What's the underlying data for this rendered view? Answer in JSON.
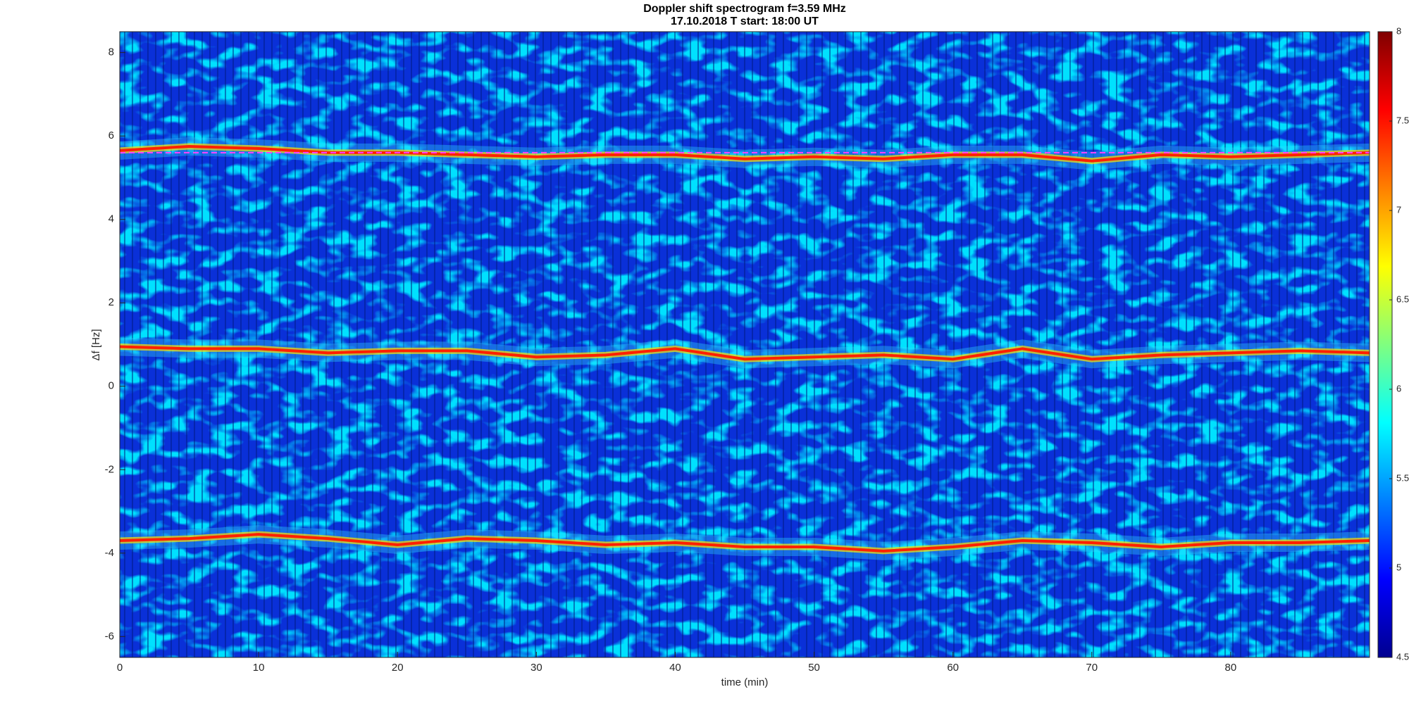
{
  "chart_data": {
    "type": "spectrogram",
    "title": "Doppler shift spectrogram f=3.59 MHz",
    "subtitle": "17.10.2018   T start: 18:00 UT",
    "x_label": "time (min)",
    "y_label": "Δf [Hz]",
    "xlim": [
      0,
      90
    ],
    "xticks": [
      0,
      10,
      20,
      30,
      40,
      50,
      60,
      70,
      80
    ],
    "ylim": [
      -6.5,
      8.5
    ],
    "yticks": [
      -6,
      -4,
      -2,
      0,
      2,
      4,
      6,
      8
    ],
    "colormap": "jet",
    "clim": [
      4.5,
      8
    ],
    "cticks": [
      4.5,
      5,
      5.5,
      6,
      6.5,
      7,
      7.5,
      8
    ],
    "x": [
      0,
      5,
      10,
      15,
      20,
      25,
      30,
      35,
      40,
      45,
      50,
      55,
      60,
      65,
      70,
      75,
      80,
      85,
      90
    ],
    "series": [
      {
        "color": "#ff2000",
        "values": [
          5.65,
          5.75,
          5.7,
          5.6,
          5.6,
          5.55,
          5.5,
          5.55,
          5.55,
          5.45,
          5.5,
          5.45,
          5.55,
          5.55,
          5.4,
          5.55,
          5.5,
          5.55,
          5.6
        ]
      },
      {
        "color": "#ff2000",
        "values": [
          0.95,
          0.9,
          0.9,
          0.8,
          0.85,
          0.85,
          0.7,
          0.75,
          0.9,
          0.65,
          0.7,
          0.75,
          0.65,
          0.9,
          0.65,
          0.75,
          0.8,
          0.85,
          0.8
        ]
      },
      {
        "color": "#ff2000",
        "values": [
          -3.7,
          -3.65,
          -3.55,
          -3.65,
          -3.8,
          -3.65,
          -3.7,
          -3.8,
          -3.75,
          -3.85,
          -3.85,
          -3.95,
          -3.85,
          -3.7,
          -3.75,
          -3.85,
          -3.75,
          -3.75,
          -3.7
        ]
      },
      {
        "color": "#ff40ff",
        "style": "dashed",
        "values": [
          5.6,
          5.6,
          5.6,
          5.6,
          5.6,
          5.6,
          5.6,
          5.6,
          5.6,
          5.6,
          5.6,
          5.6,
          5.6,
          5.6,
          5.6,
          5.6,
          5.6,
          5.6,
          5.6
        ]
      }
    ]
  }
}
